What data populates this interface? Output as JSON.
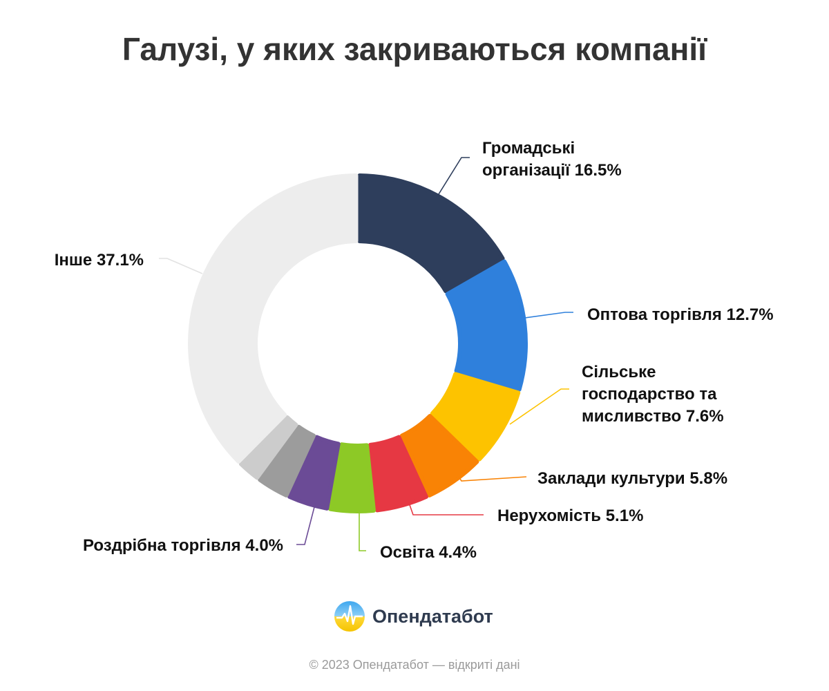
{
  "chart_data": {
    "type": "pie",
    "title": "Галузі, у яких закриваються компанії",
    "slices": [
      {
        "label": [
          "Громадські",
          "організації 16.5%"
        ],
        "value": 16.5,
        "color": "#2e3e5c"
      },
      {
        "label": [
          "Оптова торгівля 12.7%"
        ],
        "value": 12.7,
        "color": "#2f80dc"
      },
      {
        "label": [
          "Сільське",
          "господарство та",
          "мисливство 7.6%"
        ],
        "value": 7.6,
        "color": "#fdc300"
      },
      {
        "label": [
          "Заклади культури 5.8%"
        ],
        "value": 5.8,
        "color": "#f98305"
      },
      {
        "label": [
          "Нерухомість 5.1%"
        ],
        "value": 5.1,
        "color": "#e63843"
      },
      {
        "label": [
          "Освіта 4.4%"
        ],
        "value": 4.4,
        "color": "#8dc926"
      },
      {
        "label": [
          "Роздрібна торгівля 4.0%"
        ],
        "value": 4.0,
        "color": "#6b4b96"
      },
      {
        "label": [],
        "value": 3.2,
        "color": "#9c9c9c"
      },
      {
        "label": [],
        "value": 2.3,
        "color": "#cccccc"
      },
      {
        "label": [
          "Інше 37.1%"
        ],
        "value": 37.1,
        "color": "#ededed"
      }
    ]
  },
  "brand": {
    "name": "Опендатабот"
  },
  "footer": "© 2023 Опендатабот — відкриті дані"
}
